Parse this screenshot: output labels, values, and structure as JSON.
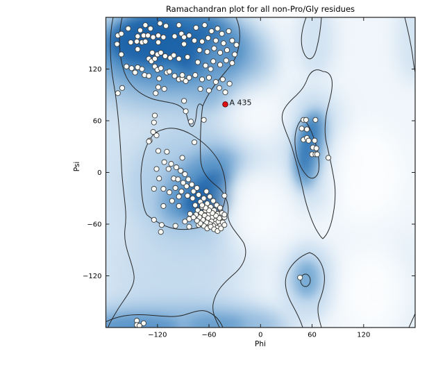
{
  "title": "Ramachandran plot for all non-Pro/Gly residues",
  "chart_data": {
    "type": "scatter",
    "title": "Ramachandran plot for all non-Pro/Gly residues",
    "xlabel": "Phi",
    "ylabel": "Psi",
    "xlim": [
      -180,
      180
    ],
    "ylim": [
      -180,
      180
    ],
    "grid": false,
    "legend": "none",
    "x_ticks": [
      {
        "label": "−120",
        "value": -120
      },
      {
        "label": "−60",
        "value": -60
      },
      {
        "label": "0",
        "value": 0
      },
      {
        "label": "60",
        "value": 60
      },
      {
        "label": "120",
        "value": 120
      }
    ],
    "y_ticks": [
      {
        "label": "120",
        "value": 120
      },
      {
        "label": "60",
        "value": 60
      },
      {
        "label": "0",
        "value": 0
      },
      {
        "label": "−60",
        "value": -60
      },
      {
        "label": "−120",
        "value": -120
      }
    ],
    "outlier": {
      "label": "A 435",
      "phi": -41,
      "psi": 79,
      "color": "#e01010"
    },
    "marker_fill": "#fafaf7",
    "marker_stroke": "#3c3c3c",
    "density_color_dark": "#1d63a9",
    "density_color_mid": "#5390c6",
    "density_color_light": "#c7dcef",
    "contour_color": "#262626",
    "points": [
      [
        -117,
        173
      ],
      [
        -134,
        171
      ],
      [
        -154,
        167
      ],
      [
        -110,
        170
      ],
      [
        -95,
        171
      ],
      [
        -166,
        159
      ],
      [
        -162,
        161
      ],
      [
        -143,
        158
      ],
      [
        -136,
        159
      ],
      [
        -131,
        159
      ],
      [
        -125,
        157
      ],
      [
        -119,
        159
      ],
      [
        -113,
        157
      ],
      [
        -140,
        165
      ],
      [
        -128,
        167
      ],
      [
        -100,
        158
      ],
      [
        -92,
        161
      ],
      [
        -89,
        157
      ],
      [
        -83,
        159
      ],
      [
        -151,
        151
      ],
      [
        -144,
        152
      ],
      [
        -138,
        151
      ],
      [
        -134,
        152
      ],
      [
        -167,
        149
      ],
      [
        -119,
        151
      ],
      [
        -89,
        149
      ],
      [
        -143,
        143
      ],
      [
        -162,
        137
      ],
      [
        -126,
        139
      ],
      [
        -120,
        137
      ],
      [
        -116,
        139
      ],
      [
        -111,
        135
      ],
      [
        -105,
        133
      ],
      [
        -101,
        136
      ],
      [
        -130,
        132
      ],
      [
        -127,
        129
      ],
      [
        -123,
        132
      ],
      [
        -95,
        132
      ],
      [
        -85,
        134
      ],
      [
        -156,
        123
      ],
      [
        -150,
        121
      ],
      [
        -143,
        122
      ],
      [
        -138,
        120
      ],
      [
        -146,
        116
      ],
      [
        -123,
        123
      ],
      [
        -120,
        119
      ],
      [
        -116,
        121
      ],
      [
        -109,
        116
      ],
      [
        -106,
        117
      ],
      [
        -135,
        113
      ],
      [
        -130,
        112
      ],
      [
        -118,
        109
      ],
      [
        -100,
        112
      ],
      [
        -95,
        108
      ],
      [
        -91,
        109
      ],
      [
        -87,
        106
      ],
      [
        -119,
        99
      ],
      [
        -112,
        97
      ],
      [
        -161,
        98
      ],
      [
        -122,
        92
      ],
      [
        -75,
        168
      ],
      [
        -65,
        171
      ],
      [
        -57,
        164
      ],
      [
        -50,
        167
      ],
      [
        -45,
        161
      ],
      [
        -37,
        164
      ],
      [
        -77,
        153
      ],
      [
        -68,
        152
      ],
      [
        -61,
        156
      ],
      [
        -52,
        153
      ],
      [
        -43,
        150
      ],
      [
        -33,
        153
      ],
      [
        -28,
        148
      ],
      [
        -71,
        142
      ],
      [
        -62,
        140
      ],
      [
        -54,
        144
      ],
      [
        -47,
        139
      ],
      [
        -39,
        142
      ],
      [
        -30,
        137
      ],
      [
        -73,
        128
      ],
      [
        -64,
        124
      ],
      [
        -55,
        129
      ],
      [
        -47,
        125
      ],
      [
        -40,
        130
      ],
      [
        -33,
        127
      ],
      [
        -91,
        113
      ],
      [
        -83,
        110
      ],
      [
        -76,
        113
      ],
      [
        -68,
        108
      ],
      [
        -60,
        110
      ],
      [
        -52,
        105
      ],
      [
        -44,
        108
      ],
      [
        -36,
        103
      ],
      [
        -60,
        95
      ],
      [
        -48,
        98
      ],
      [
        -41,
        93
      ],
      [
        -70,
        97
      ],
      [
        -58,
        120
      ],
      [
        -166,
        92
      ],
      [
        -123,
        66
      ],
      [
        -124,
        58
      ],
      [
        -81,
        59
      ],
      [
        -66,
        61
      ],
      [
        -121,
        43
      ],
      [
        -129,
        37
      ],
      [
        -89,
        83
      ],
      [
        -87,
        71
      ],
      [
        -77,
        35
      ],
      [
        -91,
        17
      ],
      [
        -125,
        47
      ],
      [
        -130,
        36
      ],
      [
        -119,
        25
      ],
      [
        -109,
        24
      ],
      [
        -112,
        12
      ],
      [
        -121,
        4
      ],
      [
        -107,
        4
      ],
      [
        -118,
        -7
      ],
      [
        -101,
        -7
      ],
      [
        -124,
        -19
      ],
      [
        -113,
        -19
      ],
      [
        -106,
        -23
      ],
      [
        -99,
        -18
      ],
      [
        -95,
        -28
      ],
      [
        -103,
        -33
      ],
      [
        -113,
        -39
      ],
      [
        -95,
        -39
      ],
      [
        -124,
        -55
      ],
      [
        -115,
        -61
      ],
      [
        -99,
        -62
      ],
      [
        -116,
        -69
      ],
      [
        -83,
        -54
      ],
      [
        -72,
        -61
      ],
      [
        -104,
        10
      ],
      [
        -98,
        6
      ],
      [
        -93,
        2
      ],
      [
        -88,
        -2
      ],
      [
        -96,
        -8
      ],
      [
        -90,
        -12
      ],
      [
        -84,
        -8
      ],
      [
        -86,
        -16
      ],
      [
        -80,
        -14
      ],
      [
        -78,
        -22
      ],
      [
        -74,
        -18
      ],
      [
        -92,
        -22
      ],
      [
        -85,
        -27
      ],
      [
        -79,
        -30
      ],
      [
        -72,
        -26
      ],
      [
        -70,
        -34
      ],
      [
        -66,
        -30
      ],
      [
        -76,
        -38
      ],
      [
        -68,
        -40
      ],
      [
        -62,
        -36
      ],
      [
        -64,
        -44
      ],
      [
        -58,
        -40
      ],
      [
        -60,
        -48
      ],
      [
        -54,
        -44
      ],
      [
        -56,
        -52
      ],
      [
        -50,
        -48
      ],
      [
        -52,
        -56
      ],
      [
        -46,
        -52
      ],
      [
        -63,
        -22
      ],
      [
        -59,
        -28
      ],
      [
        -55,
        -33
      ],
      [
        -51,
        -38
      ],
      [
        -73,
        -44
      ],
      [
        -69,
        -47
      ],
      [
        -65,
        -50
      ],
      [
        -61,
        -53
      ],
      [
        -57,
        -57
      ],
      [
        -53,
        -60
      ],
      [
        -49,
        -57
      ],
      [
        -47,
        -62
      ],
      [
        -51,
        -64
      ],
      [
        -55,
        -62
      ],
      [
        -59,
        -60
      ],
      [
        -63,
        -58
      ],
      [
        -67,
        -55
      ],
      [
        -71,
        -52
      ],
      [
        -75,
        -49
      ],
      [
        -66,
        -62
      ],
      [
        -62,
        -65
      ],
      [
        -58,
        -63
      ],
      [
        -54,
        -66
      ],
      [
        -50,
        -68
      ],
      [
        -46,
        -65
      ],
      [
        -44,
        -58
      ],
      [
        -48,
        -53
      ],
      [
        -52,
        -50
      ],
      [
        -56,
        -47
      ],
      [
        -60,
        -44
      ],
      [
        -64,
        -41
      ],
      [
        -68,
        -38
      ],
      [
        -45,
        -47
      ],
      [
        -42,
        -52
      ],
      [
        -42,
        -61
      ],
      [
        -70,
        -59
      ],
      [
        -74,
        -56
      ],
      [
        -78,
        -52
      ],
      [
        -82,
        -48
      ],
      [
        -47,
        -42
      ],
      [
        -83,
        -63
      ],
      [
        -88,
        -57
      ],
      [
        -42,
        -27
      ],
      [
        -47,
        -41
      ],
      [
        -42,
        -49
      ],
      [
        50,
        61
      ],
      [
        53,
        61
      ],
      [
        64,
        61
      ],
      [
        48,
        51
      ],
      [
        54,
        50
      ],
      [
        50,
        38
      ],
      [
        54,
        40
      ],
      [
        56,
        37
      ],
      [
        63,
        37
      ],
      [
        61,
        29
      ],
      [
        65,
        28
      ],
      [
        60,
        21
      ],
      [
        64,
        21
      ],
      [
        66,
        21
      ],
      [
        79,
        17
      ],
      [
        46,
        -122
      ],
      [
        -144,
        -172
      ],
      [
        -144,
        -177
      ],
      [
        -141,
        -178
      ],
      [
        -136,
        -175
      ]
    ]
  }
}
